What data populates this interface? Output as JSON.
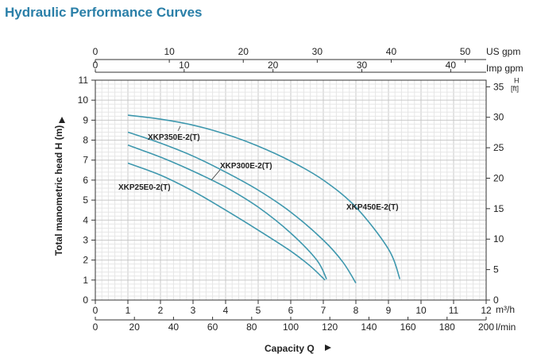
{
  "title": "Hydraulic Performance Curves",
  "chart_data": {
    "type": "line",
    "title": "Hydraulic Performance Curves",
    "xlabel": "Capacity Q",
    "ylabel": "Total manometric head H (m)",
    "x_unit_m3h": "m³/h",
    "x_unit_lmin": "l/min",
    "x_unit_usgpm": "US gpm",
    "x_unit_impgpm": "Imp gpm",
    "y_unit_ft_top": "H",
    "y_unit_ft_bottom": "[ft]",
    "grid": true,
    "xlim_m3h": [
      0,
      12
    ],
    "ylim_m": [
      0,
      11
    ],
    "axes": {
      "m3h_ticks": [
        0,
        1,
        2,
        3,
        4,
        5,
        6,
        7,
        8,
        9,
        10,
        11,
        12
      ],
      "lmin_ticks": [
        0,
        20,
        40,
        60,
        80,
        100,
        120,
        140,
        160,
        180,
        200
      ],
      "usgpm_ticks": [
        0,
        10,
        20,
        30,
        40,
        50
      ],
      "impgpm_ticks": [
        0,
        10,
        20,
        30,
        40
      ],
      "h_m_ticks": [
        0,
        1,
        2,
        3,
        4,
        5,
        6,
        7,
        8,
        9,
        10,
        11
      ],
      "h_ft_ticks": [
        0,
        5,
        10,
        15,
        20,
        25,
        30,
        35
      ]
    },
    "series": [
      {
        "name": "XKP25E0-2(T)",
        "x": [
          1.0,
          2.0,
          3.0,
          4.0,
          5.0,
          6.0,
          6.6,
          7.05
        ],
        "y": [
          6.85,
          6.25,
          5.45,
          4.5,
          3.5,
          2.45,
          1.7,
          1.0
        ]
      },
      {
        "name": "XKP300E-2(T)",
        "x": [
          1.0,
          2.0,
          3.0,
          4.0,
          5.0,
          6.0,
          6.8,
          7.1
        ],
        "y": [
          7.75,
          7.15,
          6.45,
          5.65,
          4.65,
          3.35,
          2.0,
          1.05
        ]
      },
      {
        "name": "XKP350E-2(T)",
        "x": [
          1.0,
          2.0,
          3.0,
          4.0,
          5.0,
          6.0,
          7.0,
          7.6,
          8.0
        ],
        "y": [
          8.4,
          7.85,
          7.2,
          6.4,
          5.5,
          4.4,
          3.0,
          1.9,
          0.85
        ]
      },
      {
        "name": "XKP450E-2(T)",
        "x": [
          1.0,
          2.0,
          3.0,
          4.0,
          5.0,
          6.0,
          7.0,
          8.0,
          9.0,
          9.35
        ],
        "y": [
          9.25,
          9.05,
          8.75,
          8.3,
          7.7,
          6.95,
          6.0,
          4.65,
          2.55,
          1.05
        ]
      }
    ]
  }
}
